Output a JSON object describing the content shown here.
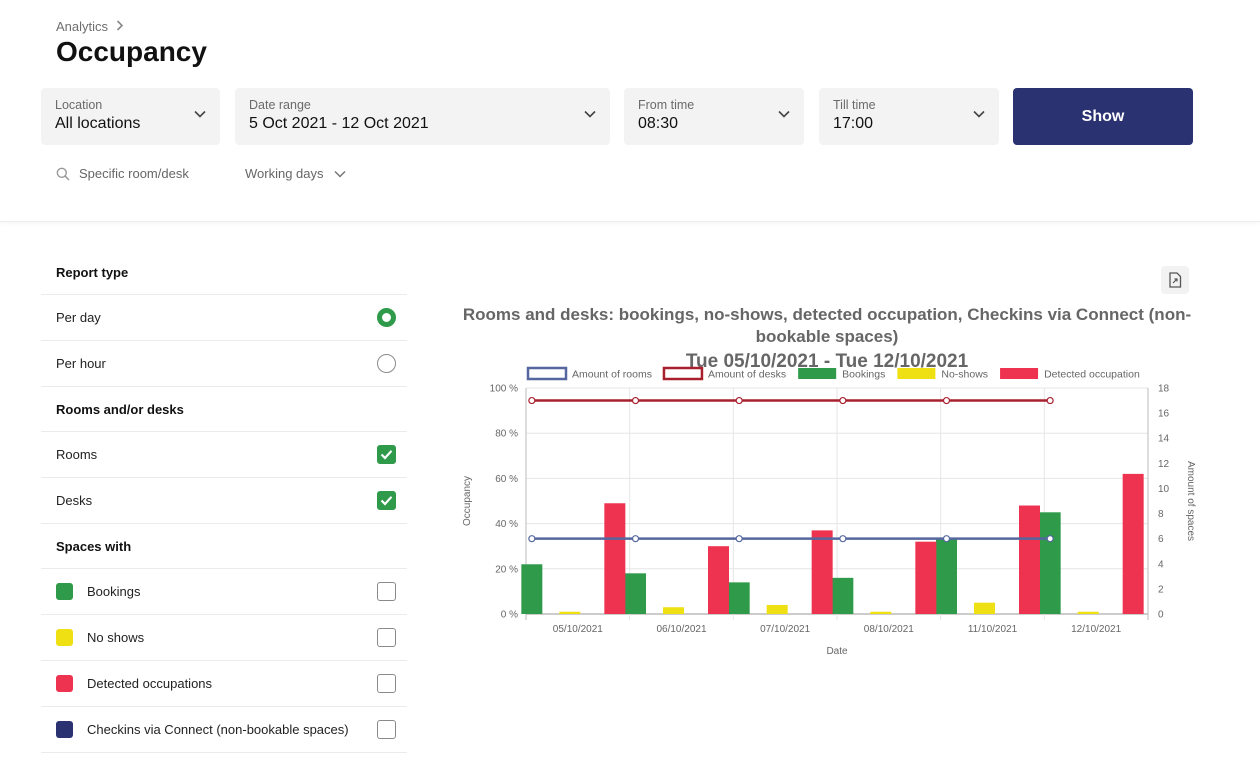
{
  "header": {
    "breadcrumb": "Analytics",
    "title": "Occupancy"
  },
  "filters": {
    "location": {
      "label": "Location",
      "value": "All locations"
    },
    "date_range": {
      "label": "Date range",
      "value": "5 Oct 2021 - 12 Oct 2021"
    },
    "from_time": {
      "label": "From time",
      "value": "08:30"
    },
    "till_time": {
      "label": "Till time",
      "value": "17:00"
    },
    "show_label": "Show",
    "search_placeholder": "Specific room/desk",
    "working_days": "Working days"
  },
  "panel": {
    "report_type": {
      "title": "Report type",
      "options": [
        {
          "label": "Per day",
          "selected": true
        },
        {
          "label": "Per hour",
          "selected": false
        }
      ]
    },
    "rooms_desks": {
      "title": "Rooms and/or desks",
      "options": [
        {
          "label": "Rooms",
          "checked": true
        },
        {
          "label": "Desks",
          "checked": true
        }
      ]
    },
    "spaces_with": {
      "title": "Spaces with",
      "options": [
        {
          "label": "Bookings",
          "color": "#2e9a4a",
          "checked": false
        },
        {
          "label": "No shows",
          "color": "#eee012",
          "checked": false
        },
        {
          "label": "Detected occupations",
          "color": "#ee3350",
          "checked": false
        },
        {
          "label": "Checkins via Connect (non-bookable spaces)",
          "color": "#2a3272",
          "checked": false
        }
      ]
    }
  },
  "chart_data": {
    "type": "bar",
    "title": "Rooms and desks: bookings, no-shows, detected occupation, Checkins via Connect (non-bookable spaces)",
    "subtitle": "Tue 05/10/2021 - Tue 12/10/2021",
    "xlabel": "Date",
    "ylabel": "Occupancy",
    "y2label": "Amount of spaces",
    "categories": [
      "05/10/2021",
      "06/10/2021",
      "07/10/2021",
      "08/10/2021",
      "11/10/2021",
      "12/10/2021"
    ],
    "ylim": [
      0,
      100
    ],
    "y2lim": [
      0,
      18
    ],
    "yticks": [
      "0 %",
      "20 %",
      "40 %",
      "60 %",
      "80 %",
      "100 %"
    ],
    "y2ticks": [
      "0",
      "2",
      "4",
      "6",
      "8",
      "10",
      "12",
      "14",
      "16",
      "18"
    ],
    "legend_position": "top",
    "grid": true,
    "series": [
      {
        "name": "Bookings",
        "kind": "bar",
        "axis": "y",
        "color": "#2e9a4a",
        "values": [
          22,
          18,
          14,
          16,
          33,
          45
        ]
      },
      {
        "name": "No-shows",
        "kind": "bar",
        "axis": "y",
        "color": "#eee012",
        "values": [
          1,
          3,
          4,
          1,
          5,
          1
        ]
      },
      {
        "name": "Detected occupation",
        "kind": "bar",
        "axis": "y",
        "color": "#ee3350",
        "values": [
          49,
          30,
          37,
          32,
          48,
          62
        ]
      },
      {
        "name": "Amount of rooms",
        "kind": "line",
        "axis": "y2",
        "color": "#55679e",
        "values": [
          6,
          6,
          6,
          6,
          6,
          6
        ]
      },
      {
        "name": "Amount of desks",
        "kind": "line",
        "axis": "y2",
        "color": "#a8202e",
        "values": [
          17,
          17,
          17,
          17,
          17,
          17
        ]
      }
    ],
    "legend_order": [
      "Amount of rooms",
      "Amount of desks",
      "Bookings",
      "No-shows",
      "Detected occupation"
    ]
  }
}
